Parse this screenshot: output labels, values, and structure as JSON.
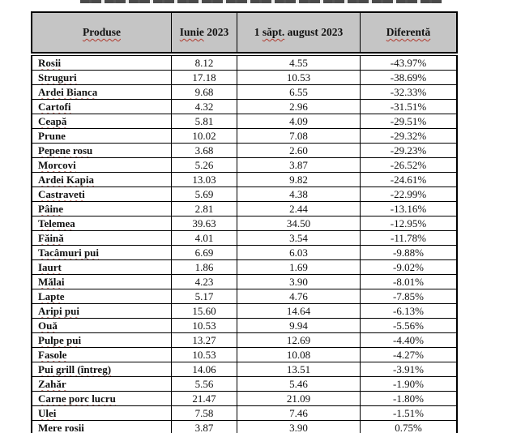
{
  "header": {
    "col1": "Produse",
    "col2_word": "Iunie",
    "col2_rest": " 2023",
    "col3_pre": "1 ",
    "col3_word": "săpt.",
    "col3_rest": " august 2023",
    "col4": "Diferentă"
  },
  "table": {
    "rows": [
      {
        "produs": "Rosii",
        "iunie": "8.12",
        "august": "4.55",
        "diferenta": "-43.97%",
        "misspelled": true
      },
      {
        "produs": "Struguri",
        "iunie": "17.18",
        "august": "10.53",
        "diferenta": "-38.69%",
        "misspelled": true
      },
      {
        "produs": "Ardei Bianca",
        "iunie": "9.68",
        "august": "6.55",
        "diferenta": "-32.33%",
        "misspelled": true
      },
      {
        "produs": "Cartofi",
        "iunie": "4.32",
        "august": "2.96",
        "diferenta": "-31.51%",
        "misspelled": true
      },
      {
        "produs": "Ceapă",
        "iunie": "5.81",
        "august": "4.09",
        "diferenta": "-29.51%",
        "misspelled": true
      },
      {
        "produs": "Prune",
        "iunie": "10.02",
        "august": "7.08",
        "diferenta": "-29.32%",
        "misspelled": false
      },
      {
        "produs": "Pepene rosu",
        "iunie": "3.68",
        "august": "2.60",
        "diferenta": "-29.23%",
        "misspelled": true
      },
      {
        "produs": "Morcovi",
        "iunie": "5.26",
        "august": "3.87",
        "diferenta": "-26.52%",
        "misspelled": true
      },
      {
        "produs": "Ardei Kapia",
        "iunie": "13.03",
        "august": "9.82",
        "diferenta": "-24.61%",
        "misspelled": true
      },
      {
        "produs": "Castraveti",
        "iunie": "5.69",
        "august": "4.38",
        "diferenta": "-22.99%",
        "misspelled": true
      },
      {
        "produs": "Pâine",
        "iunie": "2.81",
        "august": "2.44",
        "diferenta": "-13.16%",
        "misspelled": true
      },
      {
        "produs": "Telemea",
        "iunie": "39.63",
        "august": "34.50",
        "diferenta": "-12.95%",
        "misspelled": true
      },
      {
        "produs": "Făină",
        "iunie": "4.01",
        "august": "3.54",
        "diferenta": "-11.78%",
        "misspelled": true
      },
      {
        "produs": "Tacâmuri pui",
        "iunie": "6.69",
        "august": "6.03",
        "diferenta": "-9.88%",
        "misspelled": true
      },
      {
        "produs": "Iaurt",
        "iunie": "1.86",
        "august": "1.69",
        "diferenta": "-9.02%",
        "misspelled": true
      },
      {
        "produs": "Mălai",
        "iunie": "4.23",
        "august": "3.90",
        "diferenta": "-8.01%",
        "misspelled": true
      },
      {
        "produs": "Lapte",
        "iunie": "5.17",
        "august": "4.76",
        "diferenta": "-7.85%",
        "misspelled": true
      },
      {
        "produs": "Aripi pui",
        "iunie": "15.60",
        "august": "14.64",
        "diferenta": "-6.13%",
        "misspelled": true
      },
      {
        "produs": "Ouă",
        "iunie": "10.53",
        "august": "9.94",
        "diferenta": "-5.56%",
        "misspelled": true
      },
      {
        "produs": "Pulpe pui",
        "iunie": "13.27",
        "august": "12.69",
        "diferenta": "-4.40%",
        "misspelled": true
      },
      {
        "produs": "Fasole",
        "iunie": "10.53",
        "august": "10.08",
        "diferenta": "-4.27%",
        "misspelled": true
      },
      {
        "produs": "Pui grill (întreg)",
        "iunie": "14.06",
        "august": "13.51",
        "diferenta": "-3.91%",
        "misspelled": true
      },
      {
        "produs": "Zahăr",
        "iunie": "5.56",
        "august": "5.46",
        "diferenta": "-1.90%",
        "misspelled": true
      },
      {
        "produs": "Carne porc lucru",
        "iunie": "21.47",
        "august": "21.09",
        "diferenta": "-1.80%",
        "misspelled": true
      },
      {
        "produs": "Ulei",
        "iunie": "7.58",
        "august": "7.46",
        "diferenta": "-1.51%",
        "misspelled": true
      },
      {
        "produs": "Mere rosii",
        "iunie": "3.87",
        "august": "3.90",
        "diferenta": "0.75%",
        "misspelled": true
      }
    ]
  },
  "colors": {
    "header_bg": "#c5c5c5",
    "border": "#000000",
    "spellcheck_underline": "#b03a2e"
  }
}
